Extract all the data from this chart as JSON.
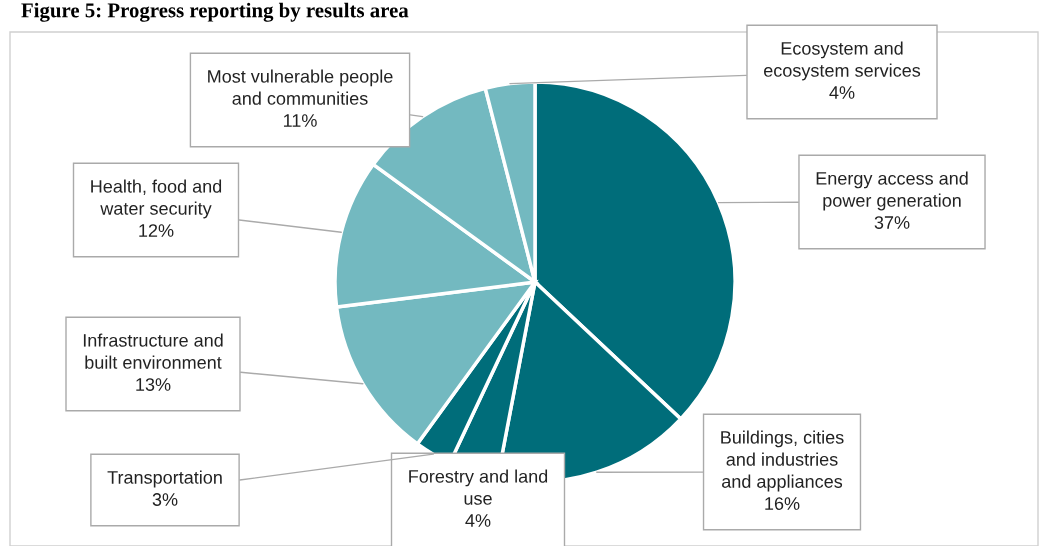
{
  "chart_data": {
    "type": "pie",
    "title": "Figure 5: Progress reporting by results area",
    "categories": [
      "Energy access and\npower generation",
      "Buildings, cities\nand industries\nand appliances",
      "Forestry and land\nuse",
      "Transportation",
      "Infrastructure and\nbuilt environment",
      "Health, food and\nwater security",
      "Most vulnerable people\nand communities",
      "Ecosystem and\necosystem services"
    ],
    "values": [
      37,
      16,
      4,
      3,
      13,
      12,
      11,
      4
    ],
    "value_labels": [
      "37%",
      "16%",
      "4%",
      "3%",
      "13%",
      "12%",
      "11%",
      "4%"
    ],
    "colors": [
      "#006d7a",
      "#006d7a",
      "#006d7a",
      "#006d7a",
      "#73b9c0",
      "#73b9c0",
      "#73b9c0",
      "#73b9c0"
    ],
    "legend": false
  }
}
